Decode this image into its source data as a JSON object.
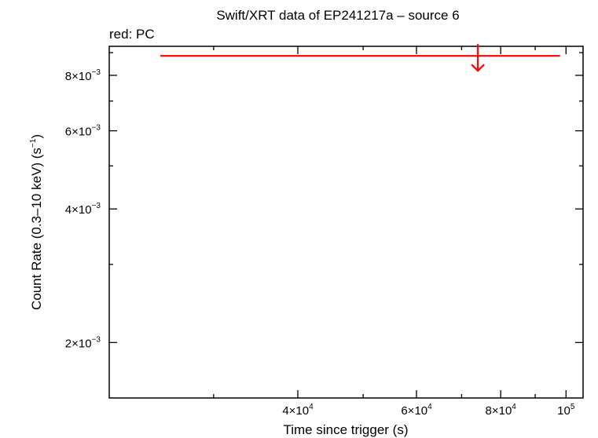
{
  "chart_data": {
    "type": "scatter",
    "title": "Swift/XRT data of EP241217a – source 6",
    "subtitle": "red: PC",
    "xlabel": "Time since trigger (s)",
    "ylabel": "Count Rate (0.3–10 keV) (s",
    "ylabel_sup": "−1",
    "ylabel_close": ")",
    "xscale": "log",
    "yscale": "log",
    "xlim": [
      21000,
      106000
    ],
    "ylim": [
      0.0015,
      0.0093
    ],
    "x_ticks": [
      {
        "value": 40000,
        "mant": "4×10",
        "exp": "4"
      },
      {
        "value": 60000,
        "mant": "6×10",
        "exp": "4"
      },
      {
        "value": 80000,
        "mant": "8×10",
        "exp": "4"
      },
      {
        "value": 100000,
        "mant": "10",
        "exp": "5"
      }
    ],
    "y_ticks": [
      {
        "value": 0.002,
        "mant": "2×10",
        "exp": "−3"
      },
      {
        "value": 0.004,
        "mant": "4×10",
        "exp": "−3"
      },
      {
        "value": 0.006,
        "mant": "6×10",
        "exp": "−3"
      },
      {
        "value": 0.008,
        "mant": "8×10",
        "exp": "−3"
      }
    ],
    "series": [
      {
        "name": "PC",
        "color": "#ff0000",
        "points": [
          {
            "x": 74000,
            "x_lo": 25000,
            "x_hi": 98000,
            "y": 0.00885,
            "upper_limit": true
          }
        ]
      }
    ]
  }
}
